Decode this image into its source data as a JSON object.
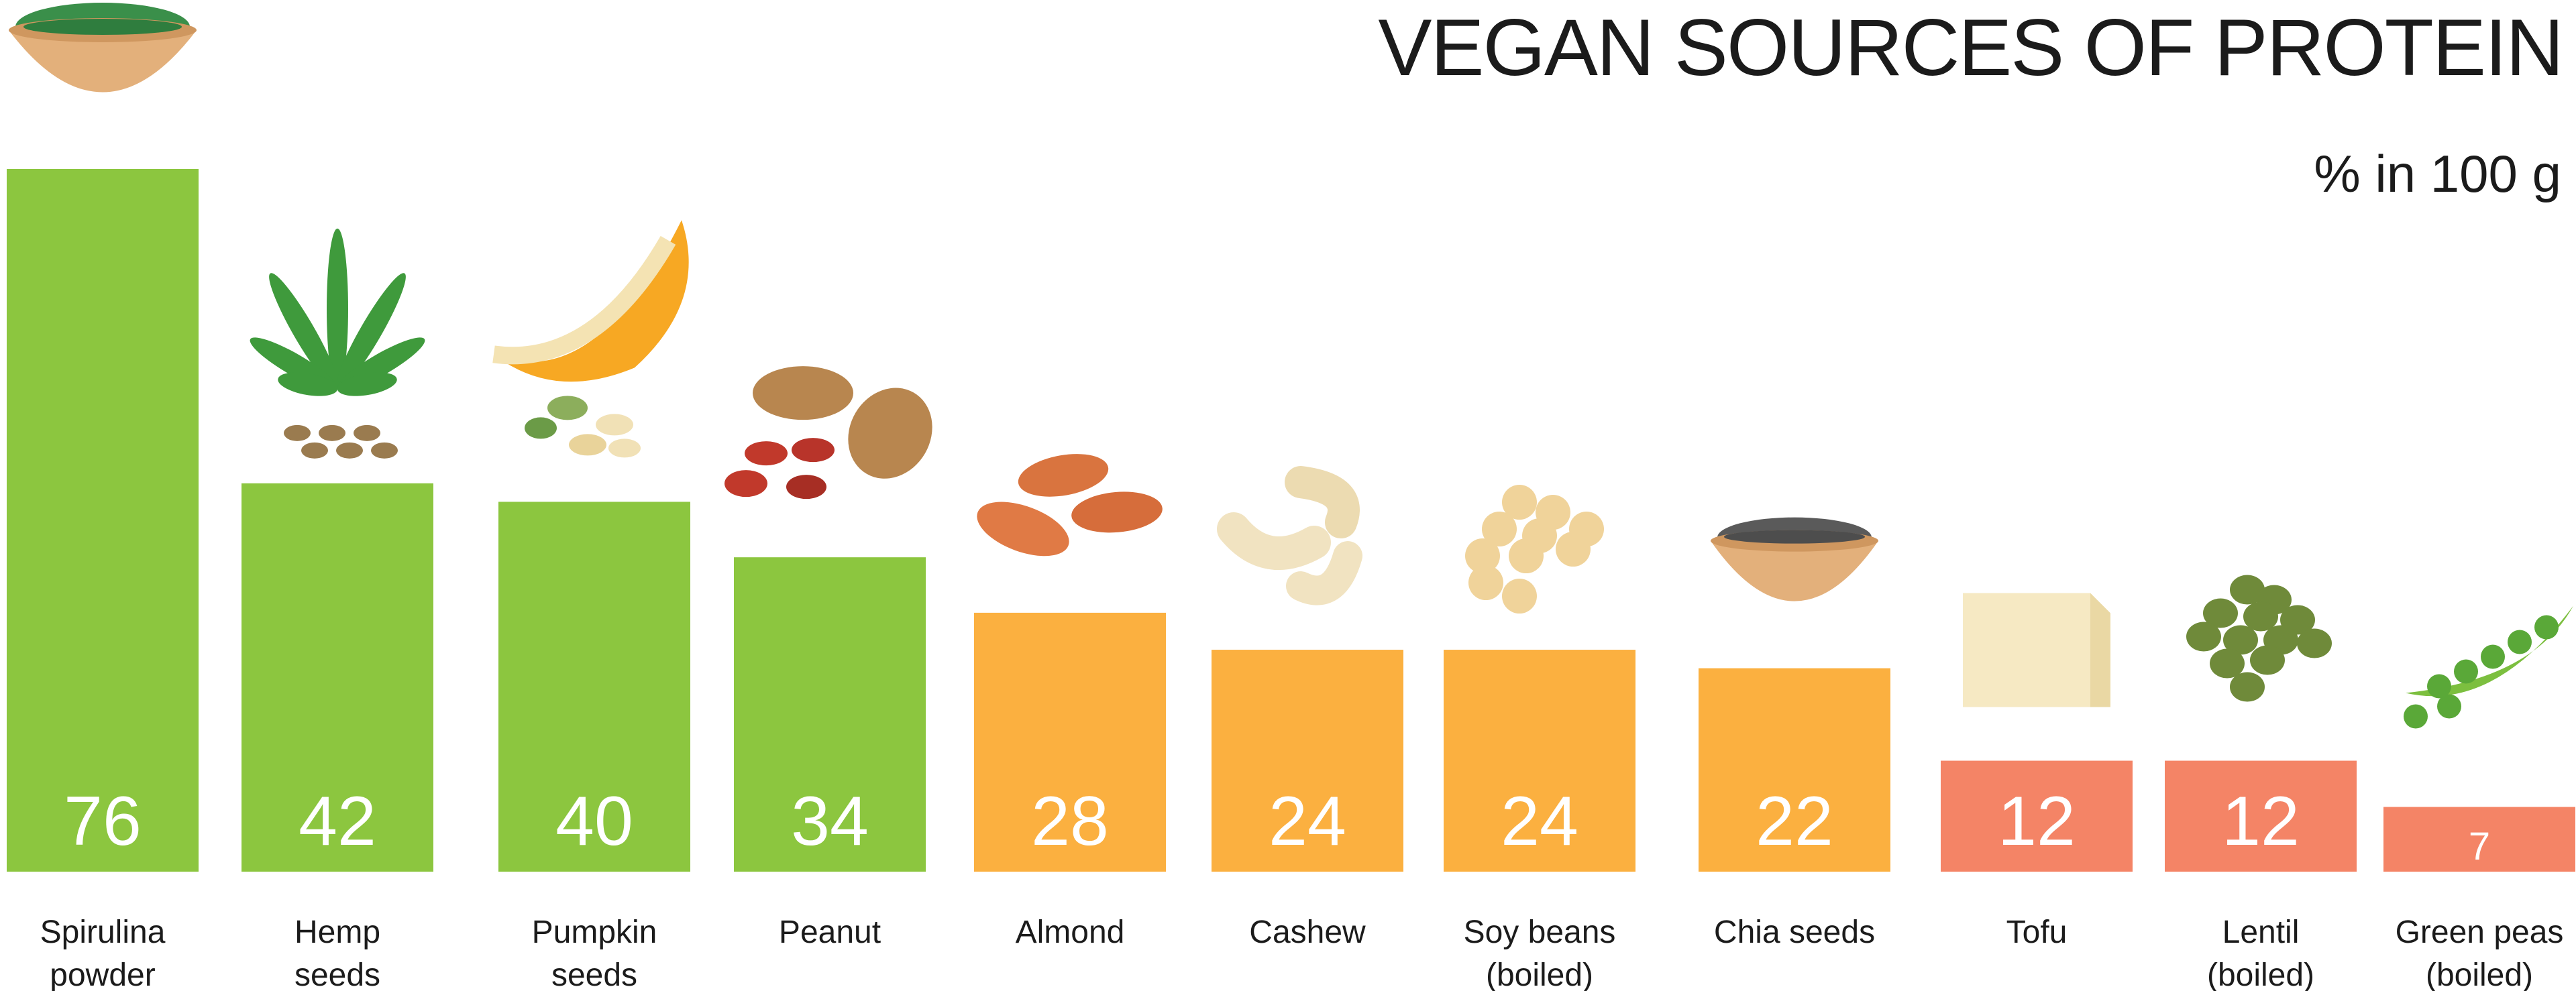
{
  "title": "VEGAN SOURCES OF PROTEIN",
  "subtitle": "% in 100 g",
  "colors": {
    "high": "#8cc63f",
    "medium": "#fbb040",
    "low": "#f48466"
  },
  "chart_data": {
    "type": "bar",
    "title": "VEGAN SOURCES OF PROTEIN",
    "ylabel": "% in 100 g",
    "xlabel": "",
    "ylim": [
      0,
      76
    ],
    "grid": false,
    "categories": [
      [
        "Spirulina",
        "powder"
      ],
      [
        "Hemp",
        "seeds"
      ],
      [
        "Pumpkin",
        "seeds"
      ],
      [
        "Peanut"
      ],
      [
        "Almond"
      ],
      [
        "Cashew"
      ],
      [
        "Soy beans",
        "(boiled)"
      ],
      [
        "Chia seeds"
      ],
      [
        "Tofu"
      ],
      [
        "Lentil",
        "(boiled)"
      ],
      [
        "Green peas",
        "(boiled)"
      ]
    ],
    "values": [
      76,
      42,
      40,
      34,
      28,
      24,
      24,
      22,
      12,
      12,
      7
    ],
    "color_groups": [
      "high",
      "high",
      "high",
      "high",
      "medium",
      "medium",
      "medium",
      "medium",
      "low",
      "low",
      "low"
    ],
    "icons": [
      "spirulina-bowl-icon",
      "hemp-leaf-icon",
      "pumpkin-icon",
      "peanut-icon",
      "almond-icon",
      "cashew-icon",
      "soybean-icon",
      "chia-bowl-icon",
      "tofu-icon",
      "lentil-icon",
      "pea-pod-icon"
    ]
  }
}
